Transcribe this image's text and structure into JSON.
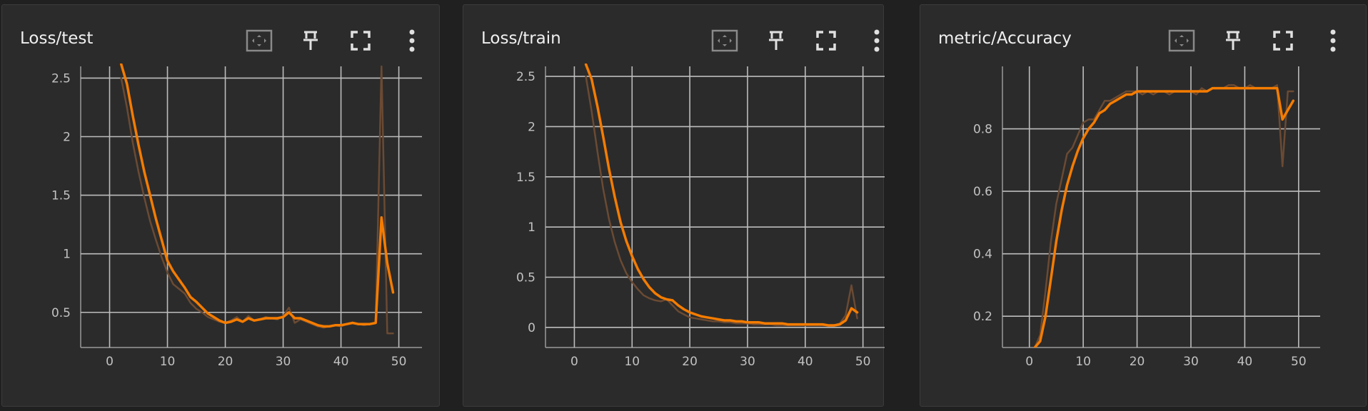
{
  "colors": {
    "background": "#202020",
    "card": "#2b2b2b",
    "grid": "#bdbdbd",
    "axis": "#9a9a9a",
    "smoothed_line": "#f57c00",
    "raw_line": "#6b4a33",
    "text": "#f0f0f0"
  },
  "cards": [
    {
      "title": "Loss/test",
      "icons": [
        "fit-domain-icon",
        "pin-icon",
        "fullscreen-icon",
        "more-vert-icon"
      ]
    },
    {
      "title": "Loss/train",
      "icons": [
        "fit-domain-icon",
        "pin-icon",
        "fullscreen-icon",
        "more-vert-icon"
      ]
    },
    {
      "title": "metric/Accuracy",
      "icons": [
        "fit-domain-icon",
        "pin-icon",
        "fullscreen-icon",
        "more-vert-icon"
      ]
    }
  ],
  "chart_data": [
    {
      "type": "line",
      "title": "Loss/test",
      "xlim": [
        -5,
        54
      ],
      "ylim": [
        0.2,
        2.6
      ],
      "xticks": [
        0,
        10,
        20,
        30,
        40,
        50
      ],
      "yticks": [
        0.5,
        1,
        1.5,
        2,
        2.5
      ],
      "ytick_labels": [
        "0.5",
        "1",
        "1.5",
        "2",
        "2.5"
      ],
      "grid": true,
      "series": [
        {
          "role": "raw",
          "x": [
            2,
            3,
            4,
            5,
            6,
            7,
            8,
            9,
            10,
            11,
            12,
            13,
            14,
            15,
            16,
            17,
            18,
            19,
            20,
            21,
            22,
            23,
            24,
            25,
            26,
            27,
            28,
            29,
            30,
            31,
            32,
            33,
            34,
            35,
            36,
            37,
            38,
            39,
            40,
            41,
            42,
            43,
            44,
            45,
            46,
            47,
            48,
            49
          ],
          "y": [
            2.5,
            2.25,
            1.95,
            1.7,
            1.48,
            1.28,
            1.12,
            0.97,
            0.84,
            0.74,
            0.7,
            0.66,
            0.58,
            0.53,
            0.5,
            0.46,
            0.44,
            0.42,
            0.41,
            0.43,
            0.46,
            0.42,
            0.47,
            0.43,
            0.44,
            0.46,
            0.45,
            0.44,
            0.47,
            0.54,
            0.41,
            0.44,
            0.42,
            0.4,
            0.38,
            0.37,
            0.38,
            0.39,
            0.38,
            0.4,
            0.41,
            0.4,
            0.39,
            0.4,
            0.41,
            2.6,
            0.32,
            0.32
          ]
        },
        {
          "role": "smoothed",
          "x": [
            2,
            3,
            4,
            5,
            6,
            7,
            8,
            9,
            10,
            11,
            12,
            13,
            14,
            15,
            16,
            17,
            18,
            19,
            20,
            21,
            22,
            23,
            24,
            25,
            26,
            27,
            28,
            29,
            30,
            31,
            32,
            33,
            34,
            35,
            36,
            37,
            38,
            39,
            40,
            41,
            42,
            43,
            44,
            45,
            46,
            47,
            48,
            49
          ],
          "y": [
            2.62,
            2.45,
            2.18,
            1.93,
            1.7,
            1.5,
            1.3,
            1.12,
            0.94,
            0.85,
            0.78,
            0.71,
            0.63,
            0.59,
            0.54,
            0.49,
            0.46,
            0.43,
            0.41,
            0.42,
            0.44,
            0.42,
            0.45,
            0.43,
            0.44,
            0.45,
            0.45,
            0.45,
            0.46,
            0.5,
            0.45,
            0.45,
            0.43,
            0.41,
            0.39,
            0.38,
            0.38,
            0.39,
            0.39,
            0.4,
            0.41,
            0.4,
            0.4,
            0.4,
            0.41,
            1.31,
            0.92,
            0.67
          ]
        }
      ]
    },
    {
      "type": "line",
      "title": "Loss/train",
      "xlim": [
        -5,
        54
      ],
      "ylim": [
        -0.2,
        2.6
      ],
      "xticks": [
        0,
        10,
        20,
        30,
        40,
        50
      ],
      "yticks": [
        0,
        0.5,
        1,
        1.5,
        2,
        2.5
      ],
      "ytick_labels": [
        "0",
        "0.5",
        "1",
        "1.5",
        "2",
        "2.5"
      ],
      "grid": true,
      "series": [
        {
          "role": "raw",
          "x": [
            2,
            3,
            4,
            5,
            6,
            7,
            8,
            9,
            10,
            11,
            12,
            13,
            14,
            15,
            16,
            17,
            18,
            19,
            20,
            21,
            22,
            23,
            24,
            25,
            26,
            27,
            28,
            29,
            30,
            31,
            32,
            33,
            34,
            35,
            36,
            37,
            38,
            39,
            40,
            41,
            42,
            43,
            44,
            45,
            46,
            47,
            48,
            49
          ],
          "y": [
            2.5,
            2.15,
            1.75,
            1.38,
            1.08,
            0.85,
            0.67,
            0.54,
            0.45,
            0.38,
            0.32,
            0.29,
            0.27,
            0.26,
            0.28,
            0.22,
            0.16,
            0.13,
            0.1,
            0.09,
            0.08,
            0.07,
            0.06,
            0.06,
            0.05,
            0.05,
            0.04,
            0.04,
            0.04,
            0.03,
            0.03,
            0.03,
            0.03,
            0.02,
            0.02,
            0.02,
            0.02,
            0.02,
            0.02,
            0.02,
            0.02,
            0.02,
            0.02,
            0.02,
            0.04,
            0.12,
            0.42,
            0.09
          ]
        },
        {
          "role": "smoothed",
          "x": [
            2,
            3,
            4,
            5,
            6,
            7,
            8,
            9,
            10,
            11,
            12,
            13,
            14,
            15,
            16,
            17,
            18,
            19,
            20,
            21,
            22,
            23,
            24,
            25,
            26,
            27,
            28,
            29,
            30,
            31,
            32,
            33,
            34,
            35,
            36,
            37,
            38,
            39,
            40,
            41,
            42,
            43,
            44,
            45,
            46,
            47,
            48,
            49
          ],
          "y": [
            2.62,
            2.47,
            2.2,
            1.9,
            1.58,
            1.3,
            1.05,
            0.86,
            0.71,
            0.58,
            0.48,
            0.4,
            0.34,
            0.3,
            0.28,
            0.27,
            0.22,
            0.18,
            0.15,
            0.13,
            0.11,
            0.1,
            0.09,
            0.08,
            0.07,
            0.07,
            0.06,
            0.06,
            0.05,
            0.05,
            0.05,
            0.04,
            0.04,
            0.04,
            0.04,
            0.03,
            0.03,
            0.03,
            0.03,
            0.03,
            0.03,
            0.03,
            0.02,
            0.02,
            0.03,
            0.07,
            0.19,
            0.15
          ]
        }
      ]
    },
    {
      "type": "line",
      "title": "metric/Accuracy",
      "xlim": [
        -5,
        54
      ],
      "ylim": [
        0.1,
        1
      ],
      "xticks": [
        0,
        10,
        20,
        30,
        40,
        50
      ],
      "yticks": [
        0.2,
        0.4,
        0.6,
        0.8
      ],
      "ytick_labels": [
        "0.2",
        "0.4",
        "0.6",
        "0.8"
      ],
      "grid": true,
      "series": [
        {
          "role": "raw",
          "x": [
            1,
            2,
            3,
            4,
            5,
            6,
            7,
            8,
            9,
            10,
            11,
            12,
            13,
            14,
            15,
            16,
            17,
            18,
            19,
            20,
            21,
            22,
            23,
            24,
            25,
            26,
            27,
            28,
            29,
            30,
            31,
            32,
            33,
            34,
            35,
            36,
            37,
            38,
            39,
            40,
            41,
            42,
            43,
            44,
            45,
            46,
            47,
            48,
            49
          ],
          "y": [
            0.1,
            0.14,
            0.28,
            0.44,
            0.56,
            0.64,
            0.72,
            0.74,
            0.78,
            0.82,
            0.83,
            0.83,
            0.86,
            0.89,
            0.89,
            0.9,
            0.91,
            0.92,
            0.92,
            0.92,
            0.91,
            0.92,
            0.91,
            0.92,
            0.92,
            0.91,
            0.92,
            0.92,
            0.92,
            0.92,
            0.91,
            0.93,
            0.92,
            0.93,
            0.93,
            0.93,
            0.94,
            0.94,
            0.93,
            0.93,
            0.94,
            0.93,
            0.93,
            0.93,
            0.93,
            0.94,
            0.68,
            0.92,
            0.92
          ]
        },
        {
          "role": "smoothed",
          "x": [
            1,
            2,
            3,
            4,
            5,
            6,
            7,
            8,
            9,
            10,
            11,
            12,
            13,
            14,
            15,
            16,
            17,
            18,
            19,
            20,
            21,
            22,
            23,
            24,
            25,
            26,
            27,
            28,
            29,
            30,
            31,
            32,
            33,
            34,
            35,
            36,
            37,
            38,
            39,
            40,
            41,
            42,
            43,
            44,
            45,
            46,
            47,
            48,
            49
          ],
          "y": [
            0.1,
            0.12,
            0.2,
            0.32,
            0.44,
            0.54,
            0.62,
            0.68,
            0.73,
            0.77,
            0.8,
            0.82,
            0.85,
            0.86,
            0.88,
            0.89,
            0.9,
            0.91,
            0.91,
            0.92,
            0.92,
            0.92,
            0.92,
            0.92,
            0.92,
            0.92,
            0.92,
            0.92,
            0.92,
            0.92,
            0.92,
            0.92,
            0.92,
            0.93,
            0.93,
            0.93,
            0.93,
            0.93,
            0.93,
            0.93,
            0.93,
            0.93,
            0.93,
            0.93,
            0.93,
            0.93,
            0.83,
            0.86,
            0.89
          ]
        }
      ]
    }
  ]
}
